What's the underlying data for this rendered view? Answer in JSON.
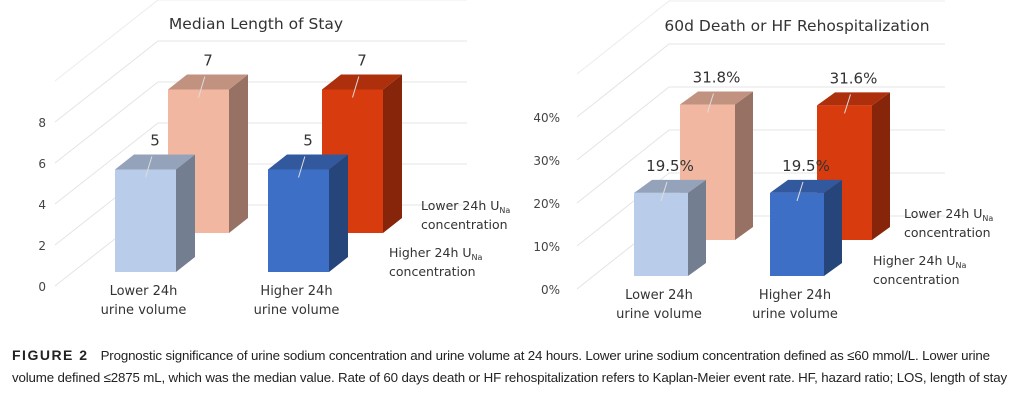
{
  "chart_data": [
    {
      "type": "bar",
      "subtype": "3d-clustered",
      "title": "Median Length of Stay",
      "categories": [
        "Lower 24h urine volume",
        "Higher 24h urine volume"
      ],
      "category_lines": [
        [
          "Lower 24h",
          "urine volume"
        ],
        [
          "Higher 24h",
          "urine volume"
        ]
      ],
      "series": [
        {
          "name": "Higher 24h U_Na concentration",
          "name_lines": [
            "Higher 24h U",
            "Na",
            "concentration"
          ],
          "row": "front",
          "values": [
            5,
            5
          ],
          "labels": [
            "5",
            "5"
          ],
          "colors": [
            "#b9cce9",
            "#3e6fc6"
          ]
        },
        {
          "name": "Lower 24h U_Na concentration",
          "name_lines": [
            "Lower 24h U",
            "Na",
            "concentration"
          ],
          "row": "back",
          "values": [
            7,
            7
          ],
          "labels": [
            "7",
            "7"
          ],
          "colors": [
            "#f2b7a1",
            "#d83b0e"
          ]
        }
      ],
      "yticks": [
        "0",
        "2",
        "4",
        "6",
        "8"
      ],
      "ytick_values": [
        0,
        2,
        4,
        6,
        8
      ],
      "ylim": [
        0,
        8
      ],
      "grid": true
    },
    {
      "type": "bar",
      "subtype": "3d-clustered",
      "title": "60d Death or HF Rehospitalization",
      "categories": [
        "Lower 24h urine volume",
        "Higher 24h urine volume"
      ],
      "category_lines": [
        [
          "Lower 24h",
          "urine volume"
        ],
        [
          "Higher 24h",
          "urine volume"
        ]
      ],
      "series": [
        {
          "name": "Higher 24h U_Na concentration",
          "name_lines": [
            "Higher 24h U",
            "Na",
            "concentration"
          ],
          "row": "front",
          "values": [
            19.5,
            19.5
          ],
          "labels": [
            "19.5%",
            "19.5%"
          ],
          "colors": [
            "#b9cce9",
            "#3e6fc6"
          ]
        },
        {
          "name": "Lower 24h U_Na concentration",
          "name_lines": [
            "Lower 24h U",
            "Na",
            "concentration"
          ],
          "row": "back",
          "values": [
            31.8,
            31.6
          ],
          "labels": [
            "31.8%",
            "31.6%"
          ],
          "colors": [
            "#f2b7a1",
            "#d83b0e"
          ]
        }
      ],
      "yticks": [
        "0%",
        "10%",
        "20%",
        "30%",
        "40%"
      ],
      "ytick_values": [
        0,
        10,
        20,
        30,
        40
      ],
      "ylim": [
        0,
        40
      ],
      "grid": true
    }
  ],
  "caption": {
    "label": "FIGURE 2",
    "text": "Prognostic significance of urine sodium concentration and urine volume at 24 hours. Lower urine sodium concentration defined as ≤60 mmol/L. Lower urine volume defined ≤2875 mL, which was the median value. Rate of 60 days death or HF rehospitalization refers to Kaplan-Meier event rate. HF, hazard ratio; LOS, length of stay"
  }
}
